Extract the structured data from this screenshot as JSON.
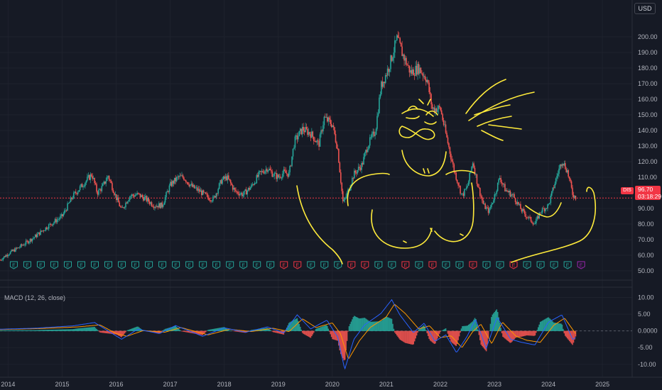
{
  "currency_button": "USD",
  "ticker": "DIS",
  "last_price": "96.70",
  "countdown": "03:18:29",
  "indicator_label": "MACD (12, 26, close)",
  "colors": {
    "background": "#161a25",
    "up": "#26a69a",
    "down": "#ef5350",
    "price_line": "#f23645",
    "annotation": "#ffeb3b",
    "macd_line": "#2962ff",
    "signal_line": "#ff9800",
    "earnings_green": "#26a69a",
    "earnings_red": "#f23645",
    "earnings_purple": "#9c27b0"
  },
  "icons": [
    "earnings-marker-icon",
    "hand-drawn-face-icon"
  ],
  "chart_data": [
    {
      "type": "candlestick",
      "ticker": "DIS",
      "currency": "USD",
      "y_ticks": [
        "200.00",
        "190.00",
        "180.00",
        "170.00",
        "160.00",
        "150.00",
        "140.00",
        "130.00",
        "120.00",
        "110.00",
        "100.00",
        "90.00",
        "80.00",
        "70.00",
        "60.00",
        "50.00"
      ],
      "ylim": [
        45,
        210
      ],
      "x_ticks": [
        "2014",
        "2015",
        "2016",
        "2017",
        "2018",
        "2019",
        "2020",
        "2021",
        "2022",
        "2023",
        "2024",
        "2025"
      ],
      "xlim": [
        2013.85,
        2025.55
      ],
      "last_close": 96.7,
      "close_path": [
        [
          2013.85,
          57
        ],
        [
          2014.0,
          61
        ],
        [
          2014.2,
          65
        ],
        [
          2014.5,
          72
        ],
        [
          2014.75,
          79
        ],
        [
          2015.0,
          85
        ],
        [
          2015.2,
          98
        ],
        [
          2015.4,
          106
        ],
        [
          2015.55,
          112
        ],
        [
          2015.65,
          100
        ],
        [
          2015.75,
          104
        ],
        [
          2015.85,
          111
        ],
        [
          2016.0,
          97
        ],
        [
          2016.1,
          89
        ],
        [
          2016.25,
          98
        ],
        [
          2016.4,
          99
        ],
        [
          2016.55,
          96
        ],
        [
          2016.7,
          92
        ],
        [
          2016.85,
          92
        ],
        [
          2017.0,
          105
        ],
        [
          2017.15,
          110
        ],
        [
          2017.25,
          110
        ],
        [
          2017.4,
          104
        ],
        [
          2017.55,
          101
        ],
        [
          2017.7,
          97
        ],
        [
          2017.8,
          96
        ],
        [
          2017.95,
          108
        ],
        [
          2018.05,
          110
        ],
        [
          2018.2,
          101
        ],
        [
          2018.35,
          99
        ],
        [
          2018.5,
          104
        ],
        [
          2018.65,
          112
        ],
        [
          2018.8,
          116
        ],
        [
          2018.9,
          112
        ],
        [
          2019.0,
          110
        ],
        [
          2019.1,
          113
        ],
        [
          2019.2,
          112
        ],
        [
          2019.3,
          133
        ],
        [
          2019.45,
          141
        ],
        [
          2019.6,
          138
        ],
        [
          2019.75,
          131
        ],
        [
          2019.85,
          148
        ],
        [
          2020.0,
          144
        ],
        [
          2020.1,
          128
        ],
        [
          2020.2,
          93
        ],
        [
          2020.28,
          100
        ],
        [
          2020.4,
          112
        ],
        [
          2020.55,
          118
        ],
        [
          2020.65,
          130
        ],
        [
          2020.8,
          140
        ],
        [
          2020.9,
          168
        ],
        [
          2021.05,
          181
        ],
        [
          2021.2,
          199
        ],
        [
          2021.3,
          189
        ],
        [
          2021.45,
          177
        ],
        [
          2021.6,
          180
        ],
        [
          2021.75,
          173
        ],
        [
          2021.85,
          154
        ],
        [
          2022.0,
          154
        ],
        [
          2022.1,
          138
        ],
        [
          2022.25,
          115
        ],
        [
          2022.4,
          98
        ],
        [
          2022.5,
          104
        ],
        [
          2022.6,
          120
        ],
        [
          2022.7,
          104
        ],
        [
          2022.8,
          92
        ],
        [
          2022.9,
          88
        ],
        [
          2023.0,
          98
        ],
        [
          2023.1,
          110
        ],
        [
          2023.2,
          102
        ],
        [
          2023.35,
          98
        ],
        [
          2023.5,
          89
        ],
        [
          2023.6,
          85
        ],
        [
          2023.75,
          80
        ],
        [
          2023.85,
          88
        ],
        [
          2024.0,
          92
        ],
        [
          2024.15,
          110
        ],
        [
          2024.25,
          121
        ],
        [
          2024.35,
          114
        ],
        [
          2024.45,
          99
        ],
        [
          2024.52,
          96.7
        ]
      ]
    },
    {
      "type": "line",
      "title": "MACD (12, 26, close)",
      "y_ticks": [
        "10.00",
        "5.00",
        "0.0000",
        "-5.00",
        "-10.00"
      ],
      "ylim": [
        -13,
        12
      ],
      "series": [
        {
          "values": [
            [
              2013.85,
              0.5
            ],
            [
              2014.5,
              0.8
            ],
            [
              2015.2,
              1.5
            ],
            [
              2015.6,
              2.5
            ],
            [
              2015.9,
              -0.5
            ],
            [
              2016.1,
              -2.5
            ],
            [
              2016.4,
              0.5
            ],
            [
              2016.8,
              -0.8
            ],
            [
              2017.1,
              1.6
            ],
            [
              2017.6,
              -1.6
            ],
            [
              2018.0,
              0.9
            ],
            [
              2018.4,
              -0.4
            ],
            [
              2018.8,
              1.2
            ],
            [
              2019.1,
              -0.6
            ],
            [
              2019.35,
              4.8
            ],
            [
              2019.6,
              0.6
            ],
            [
              2019.9,
              3.2
            ],
            [
              2020.1,
              -1.8
            ],
            [
              2020.23,
              -11.5
            ],
            [
              2020.4,
              -2.5
            ],
            [
              2020.6,
              1.8
            ],
            [
              2020.9,
              5.2
            ],
            [
              2021.1,
              9.3
            ],
            [
              2021.25,
              4.8
            ],
            [
              2021.5,
              -0.5
            ],
            [
              2021.7,
              2.3
            ],
            [
              2021.9,
              -3.1
            ],
            [
              2022.1,
              -1.2
            ],
            [
              2022.3,
              -6.5
            ],
            [
              2022.5,
              -1.5
            ],
            [
              2022.65,
              3.5
            ],
            [
              2022.85,
              -5.2
            ],
            [
              2023.05,
              4.1
            ],
            [
              2023.3,
              -2.5
            ],
            [
              2023.5,
              -3.4
            ],
            [
              2023.75,
              -4.2
            ],
            [
              2024.0,
              2.6
            ],
            [
              2024.25,
              4.8
            ],
            [
              2024.45,
              -2.6
            ],
            [
              2024.52,
              -1.8
            ]
          ]
        },
        {
          "values": [
            [
              2013.85,
              0.4
            ],
            [
              2014.6,
              0.7
            ],
            [
              2015.3,
              1.2
            ],
            [
              2015.7,
              1.8
            ],
            [
              2016.0,
              -0.8
            ],
            [
              2016.2,
              -1.6
            ],
            [
              2016.5,
              0.1
            ],
            [
              2016.9,
              -0.4
            ],
            [
              2017.2,
              1.0
            ],
            [
              2017.7,
              -1.2
            ],
            [
              2018.1,
              0.5
            ],
            [
              2018.5,
              -0.2
            ],
            [
              2018.9,
              0.8
            ],
            [
              2019.2,
              -0.2
            ],
            [
              2019.45,
              3.6
            ],
            [
              2019.7,
              1.0
            ],
            [
              2020.0,
              2.4
            ],
            [
              2020.15,
              -0.8
            ],
            [
              2020.3,
              -8.5
            ],
            [
              2020.5,
              -3.0
            ],
            [
              2020.7,
              1.0
            ],
            [
              2021.0,
              4.2
            ],
            [
              2021.15,
              8.0
            ],
            [
              2021.35,
              5.2
            ],
            [
              2021.6,
              0.6
            ],
            [
              2021.8,
              1.5
            ],
            [
              2022.0,
              -2.0
            ],
            [
              2022.2,
              -1.5
            ],
            [
              2022.4,
              -5.0
            ],
            [
              2022.6,
              -0.2
            ],
            [
              2022.75,
              2.0
            ],
            [
              2022.95,
              -3.8
            ],
            [
              2023.15,
              2.6
            ],
            [
              2023.4,
              -1.6
            ],
            [
              2023.6,
              -2.8
            ],
            [
              2023.85,
              -3.4
            ],
            [
              2024.1,
              1.7
            ],
            [
              2024.3,
              3.8
            ],
            [
              2024.52,
              -1.2
            ]
          ]
        }
      ]
    }
  ]
}
